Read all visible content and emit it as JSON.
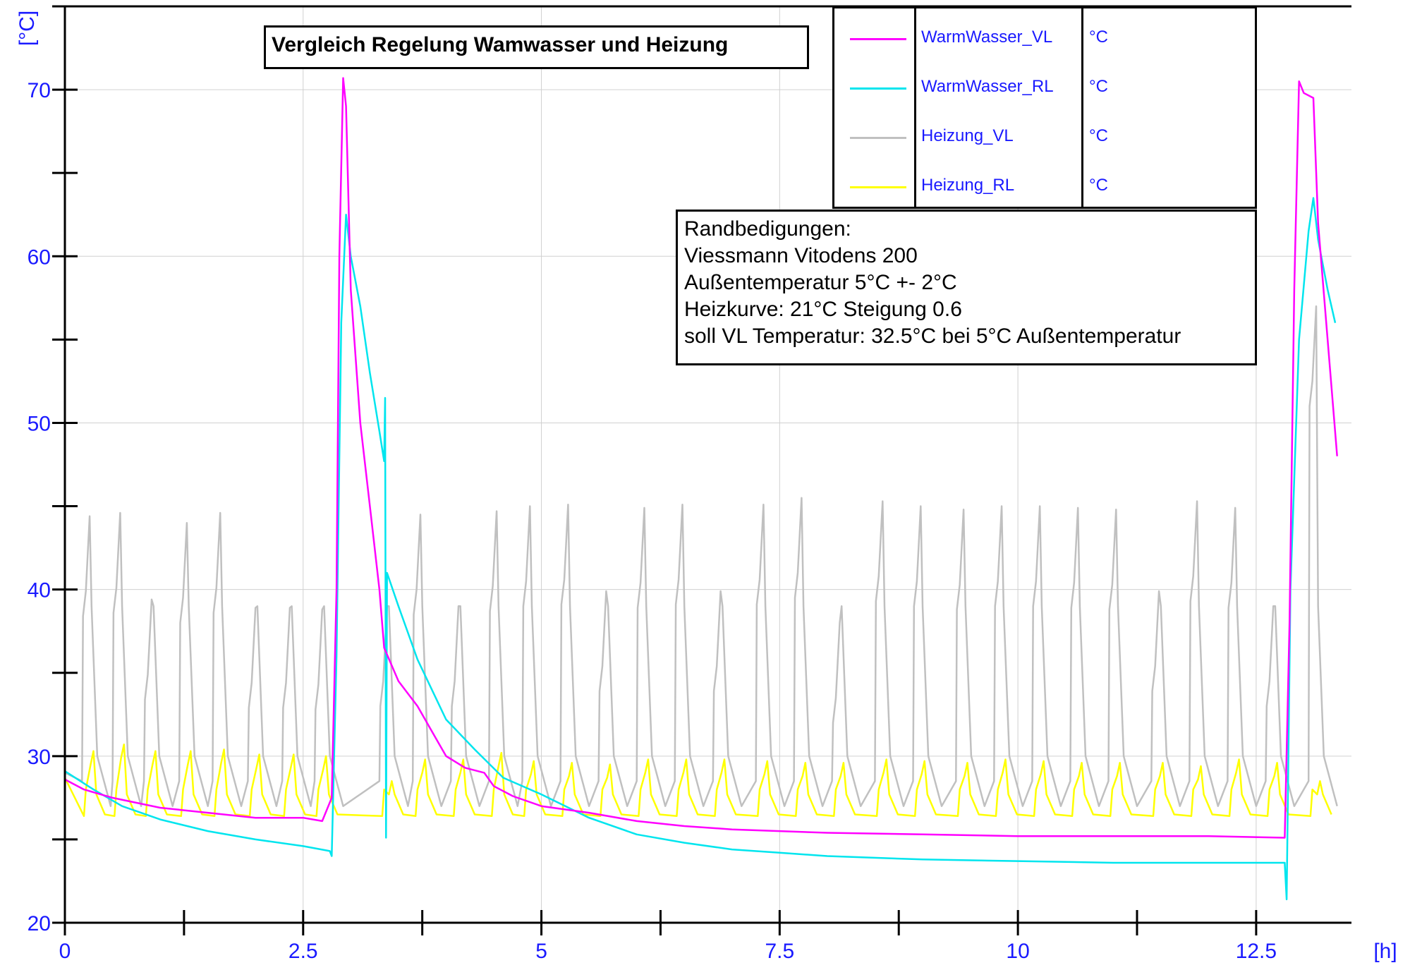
{
  "chart_data": {
    "type": "line",
    "title": "Vergleich Regelung Wamwasser und Heizung",
    "ylabel": "[°C]",
    "xlabel": "[h]",
    "xlim": [
      0,
      13.5
    ],
    "ylim": [
      20,
      75
    ],
    "x_ticks": [
      "0",
      "2.5",
      "5",
      "7.5",
      "10",
      "12.5"
    ],
    "y_ticks": [
      "20",
      "30",
      "40",
      "50",
      "60",
      "70"
    ],
    "grid": true,
    "legend_position": "top-right",
    "series": [
      {
        "name": "WarmWasser_VL",
        "unit": "°C",
        "color": "#ff00ff",
        "points": [
          [
            0,
            28.6
          ],
          [
            0.2,
            28.0
          ],
          [
            0.5,
            27.5
          ],
          [
            1.0,
            26.9
          ],
          [
            1.5,
            26.6
          ],
          [
            2.0,
            26.3
          ],
          [
            2.5,
            26.3
          ],
          [
            2.7,
            26.1
          ],
          [
            2.8,
            27.5
          ],
          [
            2.85,
            40
          ],
          [
            2.88,
            60
          ],
          [
            2.92,
            70.7
          ],
          [
            2.95,
            69
          ],
          [
            3.0,
            58
          ],
          [
            3.1,
            50
          ],
          [
            3.2,
            45
          ],
          [
            3.3,
            40
          ],
          [
            3.35,
            36.5
          ],
          [
            3.5,
            34.5
          ],
          [
            3.7,
            33
          ],
          [
            3.9,
            31
          ],
          [
            4.0,
            30
          ],
          [
            4.2,
            29.3
          ],
          [
            4.4,
            29
          ],
          [
            4.5,
            28.2
          ],
          [
            4.7,
            27.6
          ],
          [
            5.0,
            27
          ],
          [
            5.5,
            26.6
          ],
          [
            6.0,
            26.1
          ],
          [
            6.5,
            25.8
          ],
          [
            7.0,
            25.6
          ],
          [
            7.5,
            25.5
          ],
          [
            8.0,
            25.4
          ],
          [
            9.0,
            25.3
          ],
          [
            10.0,
            25.2
          ],
          [
            11.0,
            25.2
          ],
          [
            12.0,
            25.2
          ],
          [
            12.8,
            25.1
          ],
          [
            12.85,
            38
          ],
          [
            12.9,
            58
          ],
          [
            12.95,
            70.5
          ],
          [
            13.0,
            69.8
          ],
          [
            13.1,
            69.5
          ],
          [
            13.15,
            62
          ],
          [
            13.25,
            55
          ],
          [
            13.35,
            48
          ]
        ]
      },
      {
        "name": "WarmWasser_RL",
        "unit": "°C",
        "color": "#00e5ee",
        "points": [
          [
            0,
            29.1
          ],
          [
            0.3,
            28.0
          ],
          [
            0.6,
            27.0
          ],
          [
            1.0,
            26.2
          ],
          [
            1.5,
            25.5
          ],
          [
            2.0,
            25.0
          ],
          [
            2.5,
            24.6
          ],
          [
            2.78,
            24.3
          ],
          [
            2.8,
            24.0
          ],
          [
            2.85,
            36
          ],
          [
            2.9,
            56
          ],
          [
            2.95,
            62.5
          ],
          [
            3.0,
            60
          ],
          [
            3.1,
            57
          ],
          [
            3.2,
            53
          ],
          [
            3.3,
            49.5
          ],
          [
            3.35,
            47.7
          ],
          [
            3.36,
            51.5
          ],
          [
            3.37,
            25.1
          ],
          [
            3.38,
            41
          ],
          [
            3.5,
            39
          ],
          [
            3.7,
            35.8
          ],
          [
            4.0,
            32.2
          ],
          [
            4.3,
            30.4
          ],
          [
            4.6,
            28.7
          ],
          [
            5.0,
            27.7
          ],
          [
            5.5,
            26.3
          ],
          [
            6.0,
            25.3
          ],
          [
            6.5,
            24.8
          ],
          [
            7.0,
            24.4
          ],
          [
            7.5,
            24.2
          ],
          [
            8.0,
            24.0
          ],
          [
            9.0,
            23.8
          ],
          [
            10.0,
            23.7
          ],
          [
            11.0,
            23.6
          ],
          [
            12.0,
            23.6
          ],
          [
            12.8,
            23.6
          ],
          [
            12.82,
            21.4
          ],
          [
            12.86,
            40
          ],
          [
            12.95,
            55
          ],
          [
            13.05,
            61.5
          ],
          [
            13.1,
            63.5
          ],
          [
            13.15,
            61
          ],
          [
            13.25,
            58
          ],
          [
            13.33,
            56
          ]
        ]
      },
      {
        "name": "Heizung_VL",
        "unit": "°C",
        "color": "#c0c0c0",
        "points": []
      },
      {
        "name": "Heizung_RL",
        "unit": "°C",
        "color": "#ffff00",
        "points": []
      }
    ],
    "heizung_vl_pulses": {
      "starts": [
        0.18,
        0.5,
        0.83,
        1.2,
        1.55,
        1.92,
        2.28,
        2.62,
        3.3,
        3.65,
        4.05,
        4.45,
        4.8,
        5.2,
        5.6,
        6.0,
        6.4,
        6.8,
        7.25,
        7.65,
        8.05,
        8.5,
        8.9,
        9.35,
        9.75,
        10.15,
        10.55,
        10.95,
        11.4,
        11.8,
        12.2,
        12.6,
        13.05
      ],
      "peaks": [
        44.4,
        44.6,
        39.4,
        44,
        44.6,
        38.9,
        38.9,
        38.8,
        39,
        44.5,
        39,
        44.7,
        45,
        45.1,
        39.9,
        44.9,
        45.1,
        39.9,
        45.1,
        45.5,
        38,
        45.3,
        45,
        44.8,
        45,
        45,
        44.9,
        44.8,
        39.9,
        45.3,
        44.9,
        39,
        57
      ],
      "base": 27
    },
    "heizung_rl_pulses": {
      "starts": [
        0.2,
        0.52,
        0.85,
        1.22,
        1.57,
        1.94,
        2.3,
        2.64,
        3.33,
        3.68,
        4.08,
        4.48,
        4.82,
        5.22,
        5.62,
        6.02,
        6.42,
        6.82,
        7.27,
        7.67,
        8.07,
        8.52,
        8.92,
        9.37,
        9.77,
        10.17,
        10.57,
        10.97,
        11.42,
        11.82,
        12.22,
        12.62,
        13.07
      ],
      "peaks": [
        30.3,
        30.7,
        30.3,
        30.3,
        30.4,
        30.1,
        30.1,
        30.0,
        28.5,
        29.8,
        29.8,
        30.2,
        29.7,
        29.6,
        29.5,
        29.8,
        29.8,
        29.8,
        29.7,
        29.6,
        29.6,
        29.8,
        29.7,
        29.6,
        29.8,
        29.7,
        29.6,
        29.6,
        29.6,
        29.4,
        29.8,
        29.6,
        28.5
      ],
      "base": 26.7
    }
  },
  "legend": {
    "entries": [
      {
        "name": "WarmWasser_VL",
        "unit": "°C",
        "color": "#ff00ff"
      },
      {
        "name": "WarmWasser_RL",
        "unit": "°C",
        "color": "#00e5ee"
      },
      {
        "name": "Heizung_VL",
        "unit": "°C",
        "color": "#c0c0c0"
      },
      {
        "name": "Heizung_RL",
        "unit": "°C",
        "color": "#ffff00"
      }
    ]
  },
  "notes": {
    "lines": [
      "Randbedigungen:",
      "Viessmann Vitodens 200",
      "Außentemperatur 5°C +- 2°C",
      "Heizkurve: 21°C Steigung 0.6",
      "soll VL Temperatur: 32.5°C bei 5°C Außentemperatur"
    ]
  }
}
